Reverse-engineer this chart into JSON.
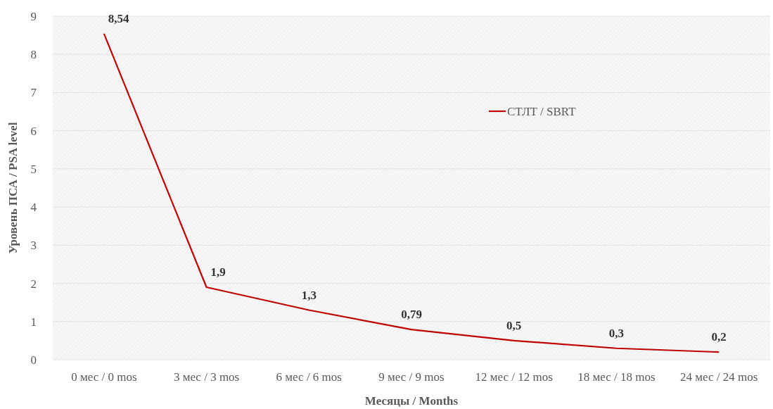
{
  "chart_data": {
    "type": "line",
    "xlabel": "Месяцы / Months",
    "ylabel": "Уровень ПСА / PSA level",
    "categories": [
      "0 мес / 0 mos",
      "3 мес / 3 mos",
      "6 мес / 6 mos",
      "9 мес / 9 mos",
      "12 мес / 12 mos",
      "18 мес / 18 mos",
      "24 мес / 24 mos"
    ],
    "series": [
      {
        "name": "СТЛТ / SBRT",
        "color": "#c00000",
        "values": [
          8.54,
          1.9,
          1.3,
          0.79,
          0.5,
          0.3,
          0.2
        ],
        "value_labels": [
          "8,54",
          "1,9",
          "1,3",
          "0,79",
          "0,5",
          "0,3",
          "0,2"
        ]
      }
    ],
    "ylim": [
      0,
      9
    ],
    "yticks": [
      0,
      1,
      2,
      3,
      4,
      5,
      6,
      7,
      8,
      9
    ],
    "grid": "y",
    "legend": "top right",
    "marker": "none",
    "line_style": "solid"
  }
}
